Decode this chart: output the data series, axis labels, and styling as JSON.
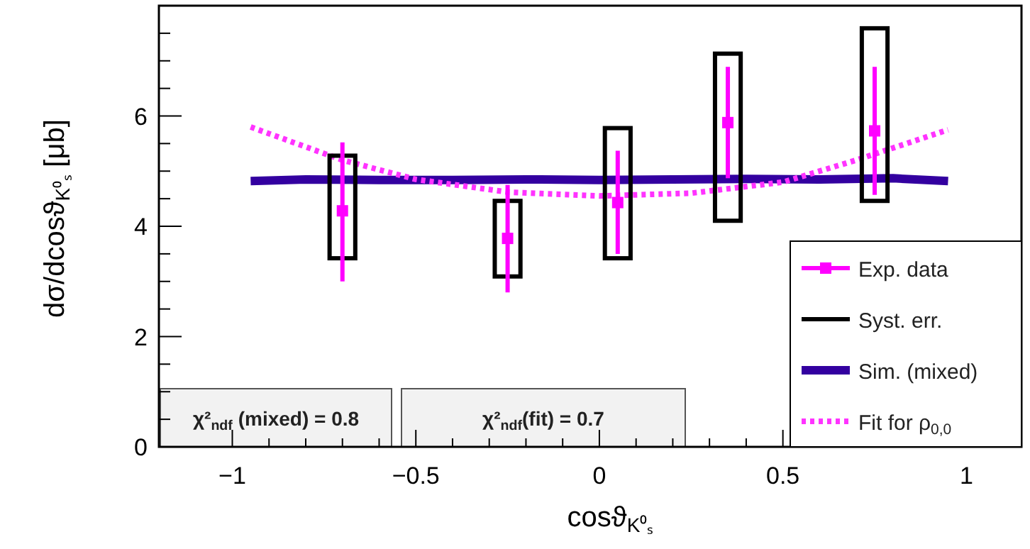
{
  "chart_data": {
    "type": "scatter",
    "xlabel": "cosϑ$_{K⁰ₛ}$",
    "ylabel": "dσ/dcosϑ$_{K⁰ₛ}$ [μb]",
    "xlim": [
      -1.2,
      1.15
    ],
    "ylim": [
      0,
      8
    ],
    "xticks": [
      {
        "value": -1,
        "label": "−1"
      },
      {
        "value": -0.9,
        "label": null
      },
      {
        "value": -0.8,
        "label": null
      },
      {
        "value": -0.7,
        "label": null
      },
      {
        "value": -0.6,
        "label": null
      },
      {
        "value": -0.5,
        "label": "−0.5"
      },
      {
        "value": -0.4,
        "label": null
      },
      {
        "value": -0.3,
        "label": null
      },
      {
        "value": -0.2,
        "label": null
      },
      {
        "value": -0.1,
        "label": null
      },
      0,
      {
        "value": 0.1,
        "label": null
      },
      {
        "value": 0.2,
        "label": null
      },
      {
        "value": 0.3,
        "label": null
      },
      {
        "value": 0.4,
        "label": null
      },
      0.5,
      {
        "value": 0.6,
        "label": null
      },
      {
        "value": 0.7,
        "label": null
      },
      {
        "value": 0.8,
        "label": null
      },
      {
        "value": 0.9,
        "label": null
      },
      1
    ],
    "yticks": [
      0,
      {
        "value": 0.5,
        "label": null
      },
      {
        "value": 1,
        "label": null
      },
      {
        "value": 1.5,
        "label": null
      },
      2,
      {
        "value": 2.5,
        "label": null
      },
      {
        "value": 3,
        "label": null
      },
      {
        "value": 3.5,
        "label": null
      },
      4,
      {
        "value": 4.5,
        "label": null
      },
      {
        "value": 5,
        "label": null
      },
      {
        "value": 5.5,
        "label": null
      },
      6,
      {
        "value": 6.5,
        "label": null
      },
      {
        "value": 7,
        "label": null
      },
      {
        "value": 7.5,
        "label": null
      }
    ],
    "legend": "bottom right",
    "grid": false,
    "annotations": [
      "χ²$_{ndf}$ (mixed) = 0.8",
      "χ²$_{ndf}$(fit) = 0.7"
    ],
    "series": [
      {
        "name": "Exp. data",
        "marker": "square",
        "color": "#ff00ff",
        "x": [
          -0.7,
          -0.25,
          0.05,
          0.35,
          0.75
        ],
        "values": [
          4.28,
          3.78,
          4.43,
          5.88,
          5.73
        ],
        "errors": [
          [
            3.0,
            5.52
          ],
          [
            2.8,
            4.75
          ],
          [
            3.5,
            5.37
          ],
          [
            4.87,
            6.89
          ],
          [
            4.57,
            6.89
          ]
        ]
      },
      {
        "name": "Syst. err.",
        "type": "bar",
        "color": "#000000",
        "x": [
          -0.7,
          -0.25,
          0.05,
          0.35,
          0.75
        ],
        "base": [
          3.42,
          3.09,
          3.42,
          4.1,
          4.46
        ],
        "values": [
          1.86,
          1.37,
          2.36,
          3.03,
          3.13
        ]
      },
      {
        "name": "Sim. (mixed)",
        "type": "line",
        "line_style": "solid",
        "color": "#3300a0",
        "x": [
          -0.95,
          -0.8,
          -0.6,
          -0.4,
          -0.2,
          0,
          0.2,
          0.4,
          0.6,
          0.8,
          0.95
        ],
        "values": [
          4.82,
          4.85,
          4.84,
          4.84,
          4.85,
          4.84,
          4.85,
          4.86,
          4.85,
          4.87,
          4.82
        ]
      },
      {
        "name": "Fit for ρ$_{0,0}$",
        "type": "line",
        "line_style": "dotted",
        "color": "#ff33ff",
        "x": [
          -0.95,
          -0.7,
          -0.5,
          -0.25,
          0,
          0.25,
          0.5,
          0.7,
          0.95
        ],
        "values": [
          5.8,
          5.2,
          4.85,
          4.62,
          4.55,
          4.6,
          4.8,
          5.2,
          5.75
        ]
      }
    ]
  }
}
